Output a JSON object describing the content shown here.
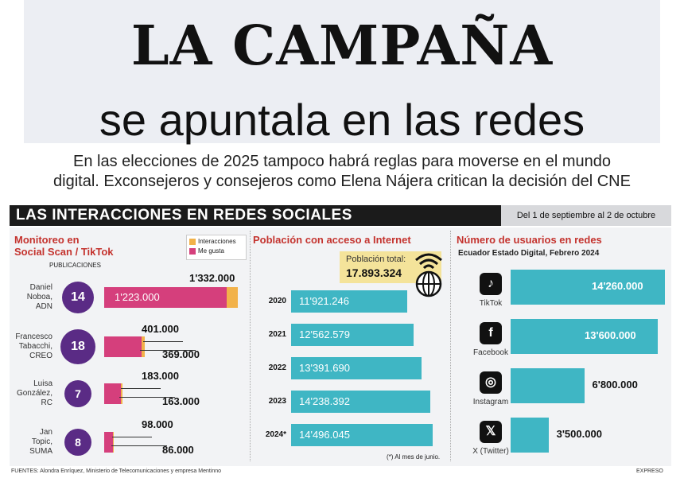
{
  "header": {
    "title_line1": "LA CAMPAÑA",
    "title_line2": "se apuntala en las redes",
    "subtitle_line1": "En las elecciones de 2025 tampoco habrá reglas para moverse en el mundo",
    "subtitle_line2": "digital. Exconsejeros y consejeros como Elena Nájera critican la decisión del CNE"
  },
  "section": {
    "title": "LAS INTERACCIONES EN REDES SOCIALES",
    "date_range": "Del 1 de septiembre al 2 de octubre"
  },
  "colors": {
    "interacciones": "#f2b24a",
    "me_gusta": "#d53f7c",
    "population_bar": "#3fb6c4",
    "users_bar": "#3fb6c4",
    "circle": "#5a2b85"
  },
  "chart_data": [
    {
      "type": "bar",
      "title_line1": "Monitoreo en",
      "title_line2": "Social Scan / TikTok",
      "axis_caption": "PUBLICACIONES",
      "legend": [
        "Interacciones",
        "Me gusta"
      ],
      "candidates": [
        {
          "name_lines": [
            "Daniel",
            "Noboa,",
            "ADN"
          ],
          "publicaciones": "14",
          "interacciones": 1332000,
          "interacciones_label": "1'332.000",
          "me_gusta": 1223000,
          "me_gusta_label": "1'223.000"
        },
        {
          "name_lines": [
            "Francesco",
            "Tabacchi,",
            "CREO"
          ],
          "publicaciones": "18",
          "interacciones": 401000,
          "interacciones_label": "401.000",
          "me_gusta": 369000,
          "me_gusta_label": "369.000"
        },
        {
          "name_lines": [
            "Luisa",
            "González,",
            "RC"
          ],
          "publicaciones": "7",
          "interacciones": 183000,
          "interacciones_label": "183.000",
          "me_gusta": 163000,
          "me_gusta_label": "163.000"
        },
        {
          "name_lines": [
            "Jan",
            "Topic,",
            "SUMA"
          ],
          "publicaciones": "8",
          "interacciones": 98000,
          "interacciones_label": "98.000",
          "me_gusta": 86000,
          "me_gusta_label": "86.000"
        }
      ]
    },
    {
      "type": "bar",
      "title": "Población con acceso a Internet",
      "total_label": "Población total:",
      "total_value": "17.893.324",
      "footnote": "(*) Al mes de junio.",
      "categories": [
        "2020",
        "2021",
        "2022",
        "2023",
        "2024*"
      ],
      "values": [
        11921246,
        12562579,
        13391690,
        14238392,
        14496045
      ],
      "value_labels": [
        "11'921.246",
        "12'562.579",
        "13'391.690",
        "14'238.392",
        "14'496.045"
      ]
    },
    {
      "type": "bar",
      "title": "Número de usuarios en redes",
      "subtitle": "Ecuador Estado Digital, Febrero 2024",
      "networks": [
        {
          "name": "TikTok",
          "icon": "tiktok-icon",
          "value": 14260000,
          "value_label": "14'260.000"
        },
        {
          "name": "Facebook",
          "icon": "facebook-icon",
          "value": 13600000,
          "value_label": "13'600.000"
        },
        {
          "name": "Instagram",
          "icon": "instagram-icon",
          "value": 6800000,
          "value_label": "6'800.000"
        },
        {
          "name": "X (Twitter)",
          "icon": "x-twitter-icon",
          "value": 3500000,
          "value_label": "3'500.000"
        }
      ]
    }
  ],
  "footer": {
    "sources": "FUENTES: Alondra Enríquez, Ministerio de Telecomunicaciones y empresa Mentinno",
    "brand": "EXPRESO"
  }
}
